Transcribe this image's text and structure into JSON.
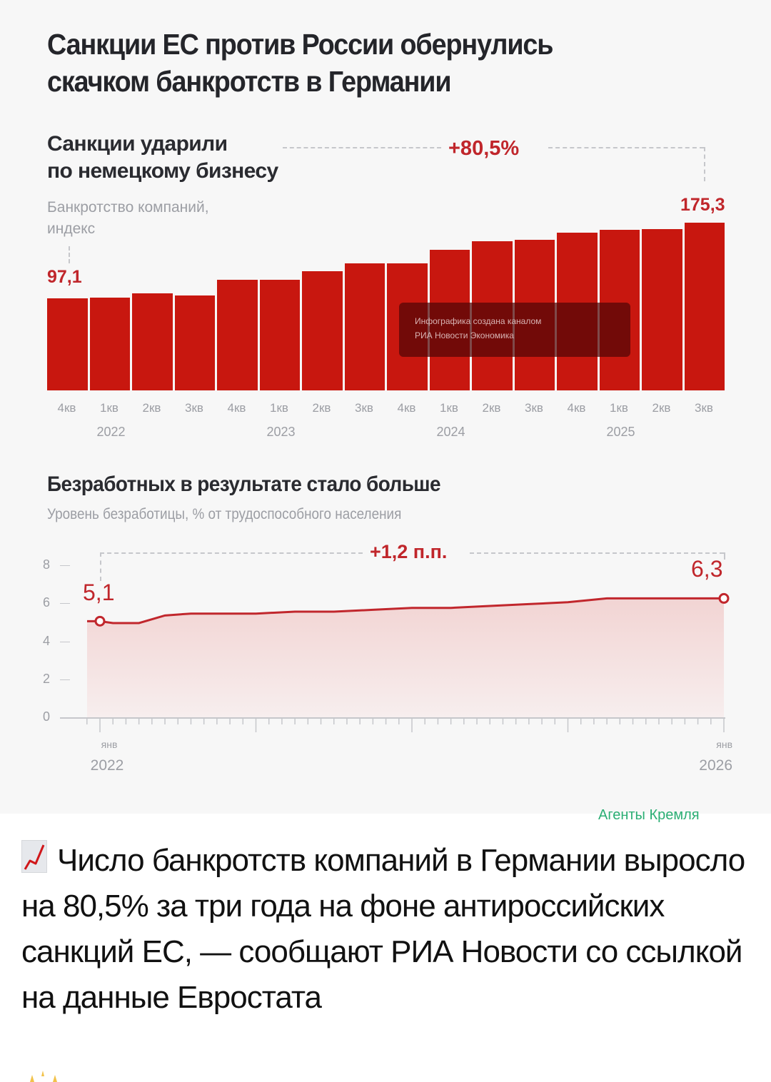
{
  "header": {
    "title_line1": "Санкции ЕС против России обернулись",
    "title_line2": "скачком банкротств в Германии"
  },
  "bankruptcy_section": {
    "title_line1": "Санкции ударили",
    "title_line2": "по немецкому бизнесу",
    "desc_line1": "Банкротство компаний,",
    "desc_line2": "индекс",
    "change_label": "+80,5%",
    "first_value_label": "97,1",
    "last_value_label": "175,3",
    "watermark_line1": "Инфографика создана каналом",
    "watermark_line2": "РИА Новости Экономика"
  },
  "unemployment_section": {
    "title": "Безработных в результате стало больше",
    "desc": "Уровень безработицы, % от трудоспособного населения",
    "change_label": "+1,2 п.п.",
    "first_value_label": "5,1",
    "last_value_label": "6,3",
    "x_start_month": "янв",
    "x_start_year": "2022",
    "x_end_month": "янв",
    "x_end_year": "2026"
  },
  "chart_data": [
    {
      "type": "bar",
      "title": "Санкции ударили по немецкому бизнесу",
      "subtitle": "Банкротство компаний, индекс",
      "xlabel": "",
      "ylabel": "индекс",
      "categories": [
        "4кв 2022",
        "1кв 2023",
        "2кв 2023",
        "3кв 2023",
        "4кв 2023",
        "1кв 2024",
        "2кв 2024",
        "3кв 2024",
        "4кв 2024",
        "1кв 2025",
        "2кв 2025",
        "3кв 2025",
        "4кв 2025",
        "1кв 2026",
        "2кв 2026",
        "3кв 2026"
      ],
      "tick_labels": [
        "4кв",
        "1кв",
        "2кв",
        "3кв",
        "4кв",
        "1кв",
        "2кв",
        "3кв",
        "4кв",
        "1кв",
        "2кв",
        "3кв",
        "4кв",
        "1кв",
        "2кв",
        "3кв"
      ],
      "year_labels": [
        {
          "label": "2022",
          "under_index": 1
        },
        {
          "label": "2023",
          "under_index": 5
        },
        {
          "label": "2024",
          "under_index": 9
        },
        {
          "label": "2025",
          "under_index": 13
        }
      ],
      "values": [
        97.1,
        97.8,
        102.5,
        99.8,
        116.5,
        116.5,
        125.5,
        133.0,
        133.0,
        147.3,
        156.3,
        157.8,
        165.3,
        168.3,
        169.0,
        175.3
      ],
      "annotations": [
        {
          "text": "97,1",
          "index": 0
        },
        {
          "text": "175,3",
          "index": 15
        },
        {
          "text": "+80,5%",
          "type": "change-bracket"
        }
      ],
      "grid": false,
      "legend": "none"
    },
    {
      "type": "area",
      "title": "Безработных в результате стало больше",
      "subtitle": "Уровень безработицы, % от трудоспособного населения",
      "xlabel": "",
      "ylabel": "%",
      "ylim": [
        0,
        8
      ],
      "yticks": [
        0,
        2,
        4,
        6,
        8
      ],
      "x_labels": [
        "янв 2022",
        "янв 2026"
      ],
      "x": [
        "2022-01",
        "2022-02",
        "2022-04",
        "2022-06",
        "2022-08",
        "2022-10",
        "2023-01",
        "2023-04",
        "2023-07",
        "2023-10",
        "2024-01",
        "2024-04",
        "2024-07",
        "2024-10",
        "2025-01",
        "2025-04",
        "2025-07",
        "2025-10",
        "2026-01"
      ],
      "values": [
        5.1,
        5.0,
        5.0,
        5.4,
        5.5,
        5.5,
        5.5,
        5.6,
        5.6,
        5.7,
        5.8,
        5.8,
        5.9,
        6.0,
        6.1,
        6.3,
        6.3,
        6.3,
        6.3
      ],
      "annotations": [
        {
          "text": "5,1",
          "x": "2022-01"
        },
        {
          "text": "6,3",
          "x": "2026-01"
        },
        {
          "text": "+1,2 п.п.",
          "type": "change-bracket"
        }
      ],
      "grid": false,
      "legend": "none"
    }
  ],
  "source_credit": "Агенты Кремля",
  "post": {
    "emoji": "chart-increasing",
    "text": "Число банкротств компаний в Германии выросло на 80,5% за три года на фоне антироссийских санкций ЕС, — сообщают РИА Новости со ссылкой на данные Евростата"
  },
  "colors": {
    "bar_red": "#c8170f",
    "accent_red": "#c0262b",
    "line_red": "#c1272d",
    "area_fill": "#f2d4d3",
    "muted_text": "#9c9ea4",
    "credit_green": "#2bae74"
  }
}
